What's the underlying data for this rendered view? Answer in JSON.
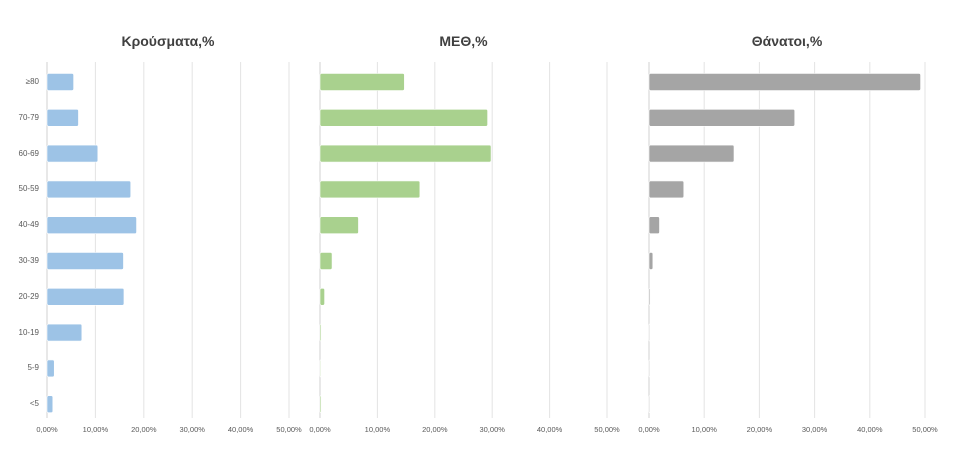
{
  "chart_data": {
    "type": "bar",
    "orientation": "horizontal",
    "categories": [
      "≥80",
      "70-79",
      "60-69",
      "50-59",
      "40-49",
      "30-39",
      "20-29",
      "10-19",
      "5-9",
      "<5"
    ],
    "xlim": [
      0,
      50
    ],
    "x_ticks": [
      "0,00%",
      "10,00%",
      "20,00%",
      "30,00%",
      "40,00%",
      "50,00%"
    ],
    "grid": true,
    "series": [
      {
        "name": "Κρούσματα,%",
        "color": "#9dc3e6",
        "values": [
          5.5,
          6.5,
          10.5,
          17.3,
          18.5,
          15.8,
          15.9,
          7.2,
          1.5,
          1.2
        ]
      },
      {
        "name": "ΜΕΘ,%",
        "color": "#a9d18e",
        "values": [
          14.7,
          29.2,
          29.8,
          17.4,
          6.7,
          2.1,
          0.8,
          0.2,
          0.1,
          0.2
        ]
      },
      {
        "name": "Θάνατοι,%",
        "color": "#a5a5a5",
        "values": [
          49.2,
          26.4,
          15.4,
          6.3,
          1.9,
          0.7,
          0.2,
          0.05,
          0.02,
          0.02
        ]
      }
    ]
  }
}
